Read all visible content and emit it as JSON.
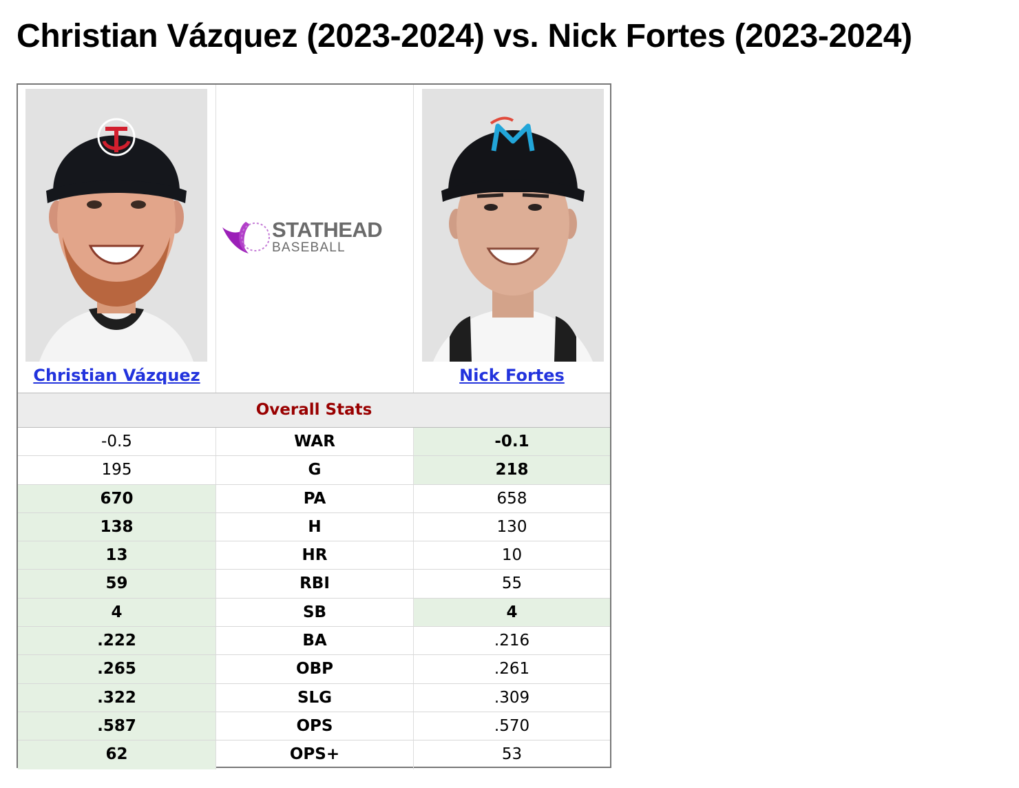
{
  "title": "Christian Vázquez (2023-2024) vs. Nick Fortes (2023-2024)",
  "players": [
    {
      "name": "Christian Vázquez",
      "team_icon": "twins-cap-logo"
    },
    {
      "name": "Nick Fortes",
      "team_icon": "marlins-cap-logo"
    }
  ],
  "logo": {
    "line1": "STATHEAD",
    "line2": "BASEBALL"
  },
  "section": "Overall Stats",
  "colors": {
    "link": "#2233dd",
    "section_text": "#990000",
    "winner_bg": "#e5f1e3"
  },
  "stats": [
    {
      "label": "WAR",
      "p1": "-0.5",
      "p2": "-0.1",
      "winner": "p2"
    },
    {
      "label": "G",
      "p1": "195",
      "p2": "218",
      "winner": "p2"
    },
    {
      "label": "PA",
      "p1": "670",
      "p2": "658",
      "winner": "p1"
    },
    {
      "label": "H",
      "p1": "138",
      "p2": "130",
      "winner": "p1"
    },
    {
      "label": "HR",
      "p1": "13",
      "p2": "10",
      "winner": "p1"
    },
    {
      "label": "RBI",
      "p1": "59",
      "p2": "55",
      "winner": "p1"
    },
    {
      "label": "SB",
      "p1": "4",
      "p2": "4",
      "winner": "both"
    },
    {
      "label": "BA",
      "p1": ".222",
      "p2": ".216",
      "winner": "p1"
    },
    {
      "label": "OBP",
      "p1": ".265",
      "p2": ".261",
      "winner": "p1"
    },
    {
      "label": "SLG",
      "p1": ".322",
      "p2": ".309",
      "winner": "p1"
    },
    {
      "label": "OPS",
      "p1": ".587",
      "p2": ".570",
      "winner": "p1"
    },
    {
      "label": "OPS+",
      "p1": "62",
      "p2": "53",
      "winner": "p1"
    }
  ]
}
